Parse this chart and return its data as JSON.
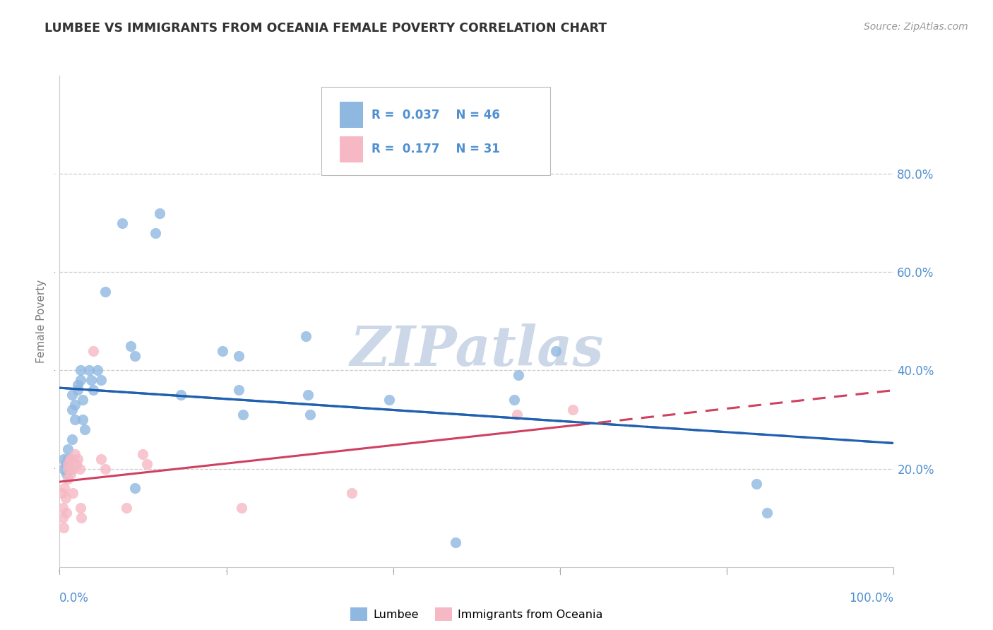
{
  "title": "LUMBEE VS IMMIGRANTS FROM OCEANIA FEMALE POVERTY CORRELATION CHART",
  "source": "Source: ZipAtlas.com",
  "ylabel": "Female Poverty",
  "xlim": [
    0.0,
    1.0
  ],
  "ylim": [
    0.0,
    1.0
  ],
  "xticks": [
    0.0,
    0.2,
    0.4,
    0.6,
    0.8,
    1.0
  ],
  "xticklabels_left": "0.0%",
  "xticklabels_right": "100.0%",
  "yticks": [
    0.2,
    0.4,
    0.6,
    0.8
  ],
  "yticklabels": [
    "20.0%",
    "40.0%",
    "60.0%",
    "80.0%"
  ],
  "legend_r1": "R = 0.037",
  "legend_n1": "N = 46",
  "legend_r2": "R = 0.177",
  "legend_n2": "N = 31",
  "blue_color": "#8fb8e0",
  "pink_color": "#f5b8c4",
  "blue_line_color": "#2060b0",
  "pink_line_color": "#d04060",
  "tick_label_color": "#5090d0",
  "grid_color": "#cccccc",
  "background_color": "#ffffff",
  "watermark_text": "ZIPatlas",
  "watermark_color": "#ccd8e8",
  "blue_scatter": [
    [
      0.005,
      0.2
    ],
    [
      0.005,
      0.22
    ],
    [
      0.007,
      0.21
    ],
    [
      0.008,
      0.19
    ],
    [
      0.01,
      0.22
    ],
    [
      0.01,
      0.24
    ],
    [
      0.01,
      0.2
    ],
    [
      0.015,
      0.26
    ],
    [
      0.015,
      0.32
    ],
    [
      0.015,
      0.35
    ],
    [
      0.018,
      0.33
    ],
    [
      0.018,
      0.3
    ],
    [
      0.022,
      0.37
    ],
    [
      0.022,
      0.36
    ],
    [
      0.025,
      0.4
    ],
    [
      0.025,
      0.38
    ],
    [
      0.028,
      0.34
    ],
    [
      0.028,
      0.3
    ],
    [
      0.03,
      0.28
    ],
    [
      0.035,
      0.4
    ],
    [
      0.038,
      0.38
    ],
    [
      0.04,
      0.36
    ],
    [
      0.045,
      0.4
    ],
    [
      0.05,
      0.38
    ],
    [
      0.055,
      0.56
    ],
    [
      0.075,
      0.7
    ],
    [
      0.085,
      0.45
    ],
    [
      0.09,
      0.43
    ],
    [
      0.09,
      0.16
    ],
    [
      0.115,
      0.68
    ],
    [
      0.12,
      0.72
    ],
    [
      0.145,
      0.35
    ],
    [
      0.195,
      0.44
    ],
    [
      0.215,
      0.43
    ],
    [
      0.215,
      0.36
    ],
    [
      0.22,
      0.31
    ],
    [
      0.295,
      0.47
    ],
    [
      0.298,
      0.35
    ],
    [
      0.3,
      0.31
    ],
    [
      0.395,
      0.34
    ],
    [
      0.475,
      0.05
    ],
    [
      0.545,
      0.34
    ],
    [
      0.55,
      0.39
    ],
    [
      0.595,
      0.44
    ],
    [
      0.835,
      0.17
    ],
    [
      0.848,
      0.11
    ]
  ],
  "pink_scatter": [
    [
      0.003,
      0.15
    ],
    [
      0.004,
      0.12
    ],
    [
      0.004,
      0.1
    ],
    [
      0.005,
      0.08
    ],
    [
      0.006,
      0.16
    ],
    [
      0.007,
      0.14
    ],
    [
      0.008,
      0.11
    ],
    [
      0.01,
      0.2
    ],
    [
      0.01,
      0.18
    ],
    [
      0.01,
      0.21
    ],
    [
      0.012,
      0.22
    ],
    [
      0.013,
      0.19
    ],
    [
      0.015,
      0.22
    ],
    [
      0.016,
      0.2
    ],
    [
      0.016,
      0.15
    ],
    [
      0.018,
      0.23
    ],
    [
      0.02,
      0.21
    ],
    [
      0.022,
      0.22
    ],
    [
      0.024,
      0.2
    ],
    [
      0.025,
      0.12
    ],
    [
      0.026,
      0.1
    ],
    [
      0.04,
      0.44
    ],
    [
      0.05,
      0.22
    ],
    [
      0.055,
      0.2
    ],
    [
      0.08,
      0.12
    ],
    [
      0.1,
      0.23
    ],
    [
      0.105,
      0.21
    ],
    [
      0.218,
      0.12
    ],
    [
      0.35,
      0.15
    ],
    [
      0.548,
      0.31
    ],
    [
      0.615,
      0.32
    ]
  ]
}
